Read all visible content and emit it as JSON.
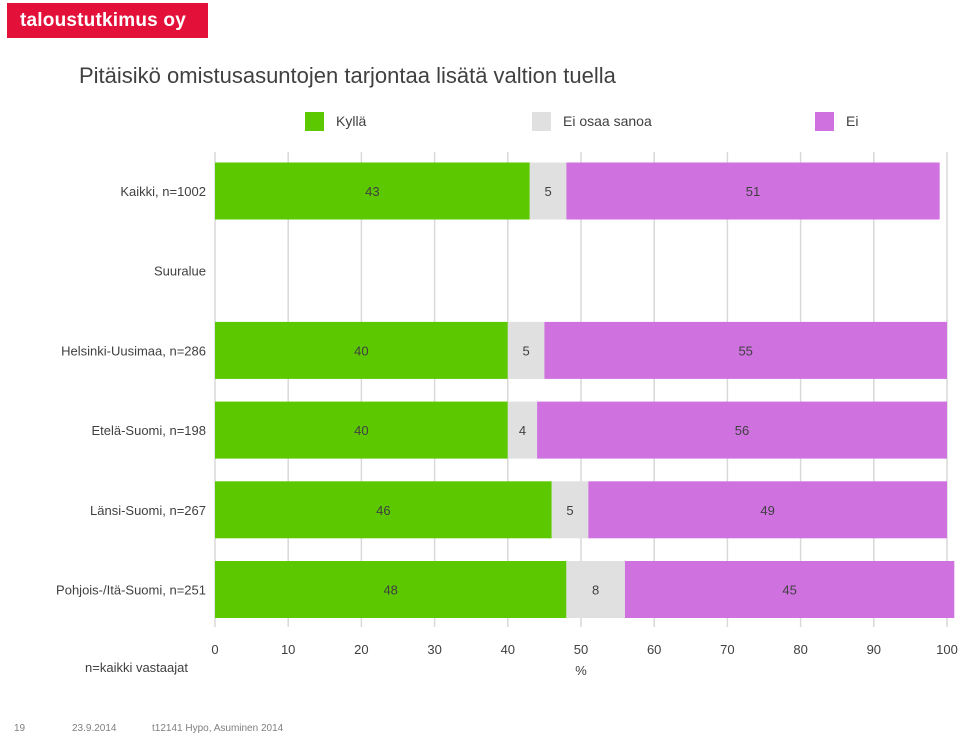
{
  "header": {
    "logo_text": "taloustutkimus oy"
  },
  "chart_data": {
    "type": "bar",
    "orientation": "horizontal",
    "stacked": true,
    "title": "Pitäisikö omistusasuntojen tarjontaa lisätä valtion tuella",
    "categories": [
      "Kaikki, n=1002",
      "Suuralue",
      "Helsinki-Uusimaa, n=286",
      "Etelä-Suomi, n=198",
      "Länsi-Suomi, n=267",
      "Pohjois-/Itä-Suomi, n=251"
    ],
    "series": [
      {
        "name": "Kyllä",
        "color": "#5cc800",
        "values": [
          43,
          null,
          40,
          40,
          46,
          48
        ]
      },
      {
        "name": "Ei osaa sanoa",
        "color": "#e0e0e0",
        "values": [
          5,
          null,
          5,
          4,
          5,
          8
        ]
      },
      {
        "name": "Ei",
        "color": "#cf72e0",
        "values": [
          51,
          null,
          55,
          56,
          49,
          45
        ]
      }
    ],
    "xlabel": "%",
    "xlim": [
      0,
      100
    ],
    "xticks": [
      0,
      10,
      20,
      30,
      40,
      50,
      60,
      70,
      80,
      90,
      100
    ],
    "grid": true,
    "legend_position": "top",
    "base_note": "n=kaikki vastaajat"
  },
  "footer": {
    "page": "19",
    "date": "23.9.2014",
    "source": "t12141 Hypo, Asuminen 2014"
  }
}
